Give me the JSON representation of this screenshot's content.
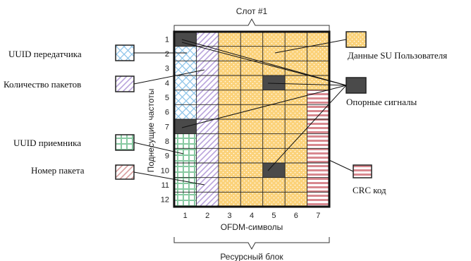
{
  "slot_label": "Слот #1",
  "resource_block_label": "Ресурсный блок",
  "y_axis_label": "Поднесущие частоты",
  "x_axis_label": "OFDM-символы",
  "row_numbers": [
    "1",
    "2",
    "3",
    "4",
    "5",
    "6",
    "7",
    "8",
    "9",
    "10",
    "11",
    "12"
  ],
  "col_numbers": [
    "1",
    "2",
    "3",
    "4",
    "5",
    "6",
    "7"
  ],
  "legend": {
    "uuid_tx": "UUID передатчика",
    "packet_count": "Количество пакетов",
    "uuid_rx": "UUID приемника",
    "packet_number": "Номер пакета",
    "su_data": "Данные SU Пользователя",
    "reference_signals": "Опорные сигналы",
    "crc": "CRC код"
  },
  "colors": {
    "su_data": "#fbd27a",
    "reference": "#4a4a4a",
    "uuid_tx": "#8ec5ea",
    "packet_count": "#b9a3dc",
    "uuid_rx": "#87c9a1",
    "packet_number": "#d89c9c",
    "crc": "#d8888f"
  }
}
